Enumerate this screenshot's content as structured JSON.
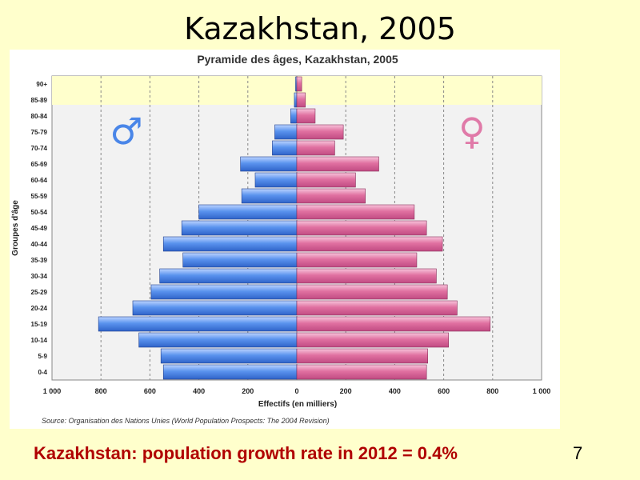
{
  "slide": {
    "title": "Kazakhstan, 2005",
    "footer": "Kazakhstan: population growth rate in 2012 = 0.4%",
    "page_number": "7"
  },
  "chart_data": {
    "type": "bar",
    "orientation": "horizontal-population-pyramid",
    "title": "Pyramide des âges, Kazakhstan, 2005",
    "xlabel": "Effectifs (en milliers)",
    "ylabel": "Groupes d'âge",
    "source": "Source: Organisation des Nations Unies (World Population Prospects: The 2004 Revision)",
    "xlim": [
      -1000,
      1000
    ],
    "x_ticks": [
      -1000,
      -800,
      -600,
      -400,
      -200,
      0,
      200,
      400,
      600,
      800,
      1000
    ],
    "x_tick_labels": [
      "1 000",
      "800",
      "600",
      "400",
      "200",
      "0",
      "200",
      "400",
      "600",
      "800",
      "1 000"
    ],
    "grid": true,
    "categories": [
      "0-4",
      "5-9",
      "10-14",
      "15-19",
      "20-24",
      "25-29",
      "30-34",
      "35-39",
      "40-44",
      "45-49",
      "50-54",
      "55-59",
      "60-64",
      "65-69",
      "70-74",
      "75-79",
      "80-84",
      "85-89",
      "90+"
    ],
    "series": [
      {
        "name": "♂",
        "color": "#4A86E8",
        "values": [
          545,
          555,
          645,
          810,
          670,
          595,
          560,
          465,
          545,
          470,
          400,
          225,
          170,
          230,
          100,
          90,
          25,
          10,
          5
        ]
      },
      {
        "name": "♀",
        "color": "#E070A0",
        "values": [
          530,
          535,
          620,
          790,
          655,
          615,
          570,
          490,
          595,
          530,
          480,
          280,
          240,
          335,
          155,
          190,
          75,
          35,
          20
        ]
      }
    ],
    "male_symbol_color": "#4A86E8",
    "female_symbol_color": "#E07AA8",
    "highlight_band_color": "#FFFFCC",
    "plot_background": "#F2F2F2"
  }
}
